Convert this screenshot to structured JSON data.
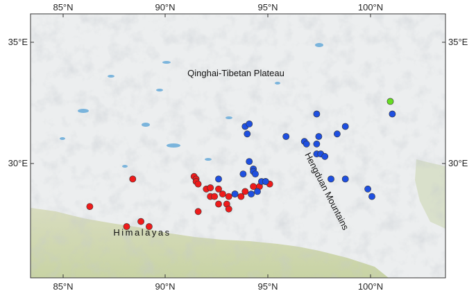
{
  "chart_data": {
    "type": "scatter",
    "x_ticks": [
      "85°N",
      "90°N",
      "95°N",
      "100°N"
    ],
    "y_ticks": [
      "35°E",
      "30°E"
    ],
    "x_range": [
      83.3,
      103.6
    ],
    "y_range": [
      25.75,
      36.3
    ],
    "labels": {
      "plateau": "Qinghai-Tibetan Plateau",
      "himalayas": "Himalayas",
      "hengduan": "Hengduan Mountains"
    },
    "series": [
      {
        "color": "#ee1b1b",
        "points": [
          [
            86.2,
            28.6
          ],
          [
            88.0,
            27.8
          ],
          [
            88.7,
            28.0
          ],
          [
            89.1,
            27.8
          ],
          [
            88.3,
            29.7
          ],
          [
            91.3,
            29.8
          ],
          [
            91.4,
            29.7
          ],
          [
            91.4,
            29.6
          ],
          [
            91.5,
            29.5
          ],
          [
            91.5,
            28.4
          ],
          [
            91.9,
            29.3
          ],
          [
            92.1,
            29.35
          ],
          [
            92.1,
            29.0
          ],
          [
            92.3,
            29.0
          ],
          [
            92.5,
            29.3
          ],
          [
            92.5,
            28.7
          ],
          [
            92.7,
            29.1
          ],
          [
            92.9,
            28.7
          ],
          [
            93.0,
            28.5
          ],
          [
            93.0,
            29.0
          ],
          [
            93.3,
            29.1
          ],
          [
            93.6,
            29.0
          ],
          [
            93.8,
            29.2
          ],
          [
            94.2,
            29.4
          ],
          [
            94.5,
            29.4
          ],
          [
            94.8,
            29.6
          ],
          [
            95.0,
            29.5
          ]
        ]
      },
      {
        "color": "#1e4fe0",
        "points": [
          [
            93.8,
            31.8
          ],
          [
            94.0,
            31.9
          ],
          [
            93.9,
            31.5
          ],
          [
            95.8,
            31.4
          ],
          [
            97.3,
            32.3
          ],
          [
            96.7,
            31.2
          ],
          [
            96.8,
            31.1
          ],
          [
            97.4,
            31.4
          ],
          [
            98.3,
            31.5
          ],
          [
            98.7,
            31.8
          ],
          [
            97.3,
            31.1
          ],
          [
            97.3,
            30.7
          ],
          [
            97.5,
            30.7
          ],
          [
            97.7,
            30.6
          ],
          [
            94.0,
            30.4
          ],
          [
            94.2,
            30.1
          ],
          [
            94.2,
            30.0
          ],
          [
            94.3,
            29.9
          ],
          [
            93.7,
            29.9
          ],
          [
            92.5,
            29.7
          ],
          [
            94.6,
            29.6
          ],
          [
            94.8,
            29.6
          ],
          [
            98.0,
            29.7
          ],
          [
            98.7,
            29.7
          ],
          [
            99.8,
            29.3
          ],
          [
            100.0,
            29.0
          ],
          [
            94.4,
            29.2
          ],
          [
            94.1,
            29.1
          ],
          [
            93.3,
            29.1
          ],
          [
            101.0,
            32.3
          ]
        ]
      },
      {
        "color": "#66dd22",
        "points": [
          [
            100.9,
            32.8
          ]
        ]
      }
    ]
  }
}
